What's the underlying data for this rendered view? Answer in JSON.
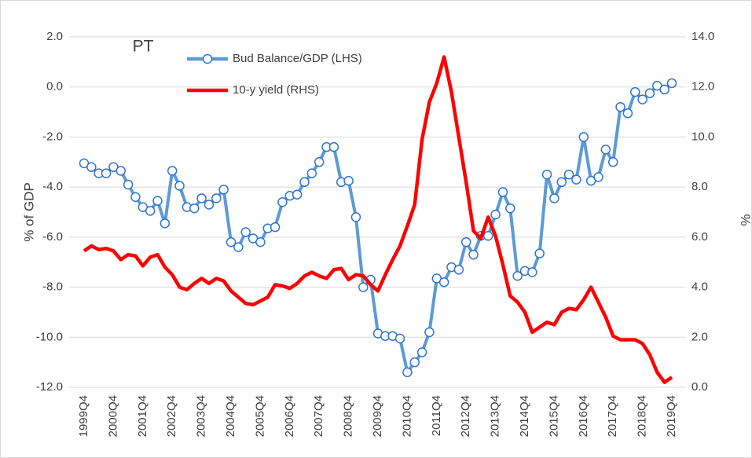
{
  "chart_data": {
    "type": "line",
    "title": "PT",
    "ylabel": "% of GDP",
    "y2label": "%",
    "categories": [
      "1999Q4",
      null,
      null,
      null,
      "2000Q4",
      null,
      null,
      null,
      "2001Q4",
      null,
      null,
      null,
      "2002Q4",
      null,
      null,
      null,
      "2003Q4",
      null,
      null,
      null,
      "2004Q4",
      null,
      null,
      null,
      "2005Q4",
      null,
      null,
      null,
      "2006Q4",
      null,
      null,
      null,
      "2007Q4",
      null,
      null,
      null,
      "2008Q4",
      null,
      null,
      null,
      "2009Q4",
      null,
      null,
      null,
      "2010Q4",
      null,
      null,
      null,
      "2011Q4",
      null,
      null,
      null,
      "2012Q4",
      null,
      null,
      null,
      "2013Q4",
      null,
      null,
      null,
      "2014Q4",
      null,
      null,
      null,
      "2015Q4",
      null,
      null,
      null,
      "2016Q4",
      null,
      null,
      null,
      "2017Q4",
      null,
      null,
      null,
      "2018Q4",
      null,
      null,
      null,
      "2019Q4"
    ],
    "series": [
      {
        "name": "Bud Balance/GDP (LHS)",
        "color": "#5b9bd5",
        "axis": "y",
        "values": [
          -3.05,
          -3.2,
          -3.45,
          -3.45,
          -3.2,
          -3.35,
          -3.9,
          -4.4,
          -4.8,
          -4.95,
          -4.55,
          -5.45,
          -3.35,
          -3.95,
          -4.8,
          -4.85,
          -4.45,
          -4.7,
          -4.45,
          -4.1,
          -6.2,
          -6.4,
          -5.8,
          -6.05,
          -6.2,
          -5.65,
          -5.6,
          -4.6,
          -4.35,
          -4.3,
          -3.8,
          -3.45,
          -3.0,
          -2.4,
          -2.4,
          -3.8,
          -3.75,
          -5.2,
          -8.0,
          -7.7,
          -9.85,
          -9.95,
          -9.95,
          -10.05,
          -11.4,
          -11.0,
          -10.6,
          -9.8,
          -7.65,
          -7.8,
          -7.2,
          -7.3,
          -6.2,
          -6.7,
          -5.95,
          -5.95,
          -5.1,
          -4.2,
          -4.85,
          -7.55,
          -7.35,
          -7.4,
          -6.65,
          -3.5,
          -4.45,
          -3.8,
          -3.5,
          -3.7,
          -2.0,
          -3.75,
          -3.6,
          -2.5,
          -3.0,
          -0.8,
          -1.05,
          -0.2,
          -0.5,
          -0.25,
          0.05,
          -0.1,
          0.15
        ]
      },
      {
        "name": "10-y yield (RHS)",
        "color": "#ff0000",
        "axis": "y2",
        "values": [
          5.45,
          5.65,
          5.5,
          5.55,
          5.45,
          5.1,
          5.3,
          5.25,
          4.85,
          5.2,
          5.3,
          4.8,
          4.5,
          4.0,
          3.9,
          4.15,
          4.35,
          4.15,
          4.35,
          4.25,
          3.85,
          3.6,
          3.35,
          3.3,
          3.45,
          3.6,
          4.1,
          4.05,
          3.95,
          4.15,
          4.45,
          4.6,
          4.45,
          4.35,
          4.7,
          4.75,
          4.3,
          4.5,
          4.45,
          4.1,
          3.85,
          4.5,
          5.1,
          5.65,
          6.45,
          7.3,
          9.9,
          11.4,
          12.15,
          13.2,
          11.8,
          10.0,
          8.2,
          6.25,
          5.95,
          6.8,
          6.05,
          4.9,
          3.65,
          3.4,
          3.0,
          2.2,
          2.4,
          2.6,
          2.5,
          3.0,
          3.15,
          3.1,
          3.5,
          4.0,
          3.4,
          2.8,
          2.05,
          1.9,
          1.9,
          1.9,
          1.75,
          1.3,
          0.6,
          0.2,
          0.4
        ]
      }
    ],
    "ylim": [
      -12,
      2
    ],
    "yticks": [
      {
        "value": -12,
        "label": "-12.0"
      },
      {
        "value": -10,
        "label": "-10.0"
      },
      {
        "value": -8,
        "label": "-8.0"
      },
      {
        "value": -6,
        "label": "-6.0"
      },
      {
        "value": -4,
        "label": "-4.0"
      },
      {
        "value": -2,
        "label": "-2.0"
      },
      {
        "value": 0,
        "label": "0.0"
      },
      {
        "value": 2,
        "label": "2.0"
      }
    ],
    "y2lim": [
      0,
      14
    ],
    "y2ticks": [
      {
        "value": 0,
        "label": "0.0"
      },
      {
        "value": 2,
        "label": "2.0"
      },
      {
        "value": 4,
        "label": "4.0"
      },
      {
        "value": 6,
        "label": "6.0"
      },
      {
        "value": 8,
        "label": "8.0"
      },
      {
        "value": 10,
        "label": "10.0"
      },
      {
        "value": 12,
        "label": "12.0"
      },
      {
        "value": 14,
        "label": "14.0"
      }
    ],
    "grid": true
  }
}
